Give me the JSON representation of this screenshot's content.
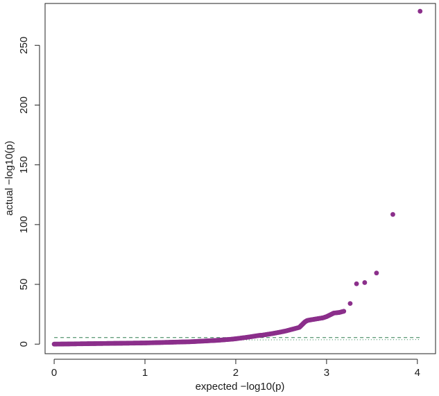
{
  "chart_data": {
    "type": "scatter",
    "title": "",
    "xlabel": "expected −log10(p)",
    "ylabel": "actual −log10(p)",
    "xlim": [
      -0.1,
      4.2
    ],
    "ylim": [
      -8,
      285
    ],
    "x_ticks": [
      0,
      1,
      2,
      3,
      4
    ],
    "y_ticks": [
      0,
      50,
      100,
      150,
      200,
      250
    ],
    "grid": false,
    "legend": "none",
    "colors": {
      "points": "#8b2f8b",
      "reference_line": "#2e7d4f"
    },
    "reference_lines": [
      {
        "style": "dashed",
        "y": 5.5
      },
      {
        "style": "dotted",
        "x": [
          1.9,
          4.03
        ],
        "y": [
          3.5,
          3.8
        ]
      }
    ],
    "series": [
      {
        "points": [
          [
            0.0,
            0.0
          ],
          [
            0.05,
            0.05
          ],
          [
            0.1,
            0.1
          ],
          [
            0.15,
            0.15
          ],
          [
            0.2,
            0.2
          ],
          [
            0.25,
            0.25
          ],
          [
            0.3,
            0.3
          ],
          [
            0.35,
            0.35
          ],
          [
            0.4,
            0.4
          ],
          [
            0.45,
            0.45
          ],
          [
            0.5,
            0.5
          ],
          [
            0.55,
            0.55
          ],
          [
            0.6,
            0.6
          ],
          [
            0.65,
            0.65
          ],
          [
            0.7,
            0.7
          ],
          [
            0.75,
            0.75
          ],
          [
            0.8,
            0.8
          ],
          [
            0.85,
            0.85
          ],
          [
            0.9,
            0.9
          ],
          [
            0.95,
            0.95
          ],
          [
            1.0,
            1.0
          ],
          [
            1.05,
            1.1
          ],
          [
            1.1,
            1.2
          ],
          [
            1.15,
            1.3
          ],
          [
            1.2,
            1.4
          ],
          [
            1.25,
            1.5
          ],
          [
            1.3,
            1.6
          ],
          [
            1.35,
            1.7
          ],
          [
            1.4,
            1.8
          ],
          [
            1.45,
            1.9
          ],
          [
            1.5,
            2.0
          ],
          [
            1.55,
            2.2
          ],
          [
            1.6,
            2.4
          ],
          [
            1.65,
            2.6
          ],
          [
            1.7,
            2.8
          ],
          [
            1.75,
            3.0
          ],
          [
            1.8,
            3.2
          ],
          [
            1.85,
            3.5
          ],
          [
            1.9,
            3.8
          ],
          [
            1.95,
            4.1
          ],
          [
            2.0,
            4.5
          ],
          [
            2.05,
            5.0
          ],
          [
            2.1,
            5.5
          ],
          [
            2.15,
            6.0
          ],
          [
            2.2,
            6.6
          ],
          [
            2.25,
            7.2
          ],
          [
            2.3,
            7.6
          ],
          [
            2.35,
            8.2
          ],
          [
            2.4,
            8.8
          ],
          [
            2.45,
            9.5
          ],
          [
            2.5,
            10.2
          ],
          [
            2.55,
            11.0
          ],
          [
            2.6,
            12.0
          ],
          [
            2.65,
            13.0
          ],
          [
            2.7,
            14.0
          ],
          [
            2.72,
            15.5
          ],
          [
            2.74,
            17.0
          ],
          [
            2.76,
            18.5
          ],
          [
            2.78,
            19.5
          ],
          [
            2.8,
            20.0
          ],
          [
            2.84,
            20.5
          ],
          [
            2.88,
            21.0
          ],
          [
            2.92,
            21.5
          ],
          [
            2.96,
            22.0
          ],
          [
            3.0,
            23.0
          ],
          [
            3.04,
            24.5
          ],
          [
            3.08,
            26.0
          ],
          [
            3.14,
            26.5
          ],
          [
            3.19,
            27.5
          ],
          [
            3.26,
            34.0
          ],
          [
            3.33,
            50.5
          ],
          [
            3.42,
            51.5
          ],
          [
            3.55,
            59.5
          ],
          [
            3.73,
            108.5
          ],
          [
            4.03,
            278.5
          ]
        ]
      }
    ]
  }
}
